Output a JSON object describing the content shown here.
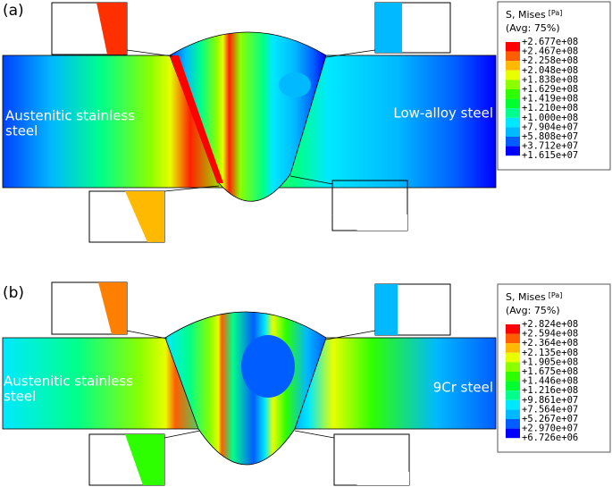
{
  "panels": [
    {
      "label": "(a)",
      "legend": {
        "title": "S, Mises",
        "unit": "[Pa]",
        "average": "(Avg: 75%)",
        "values": [
          "+2.677e+08",
          "+2.467e+08",
          "+2.258e+08",
          "+2.048e+08",
          "+1.838e+08",
          "+1.629e+08",
          "+1.419e+08",
          "+1.210e+08",
          "+1.000e+08",
          "+7.904e+07",
          "+5.808e+07",
          "+3.712e+07",
          "+1.615e+07"
        ]
      },
      "left_material": [
        "Austenitic stainless",
        "steel"
      ],
      "right_material": [
        "Low-alloy steel"
      ]
    },
    {
      "label": "(b)",
      "legend": {
        "title": "S, Mises",
        "unit": "[Pa]",
        "average": "(Avg: 75%)",
        "values": [
          "+2.824e+08",
          "+2.594e+08",
          "+2.364e+08",
          "+2.135e+08",
          "+1.905e+08",
          "+1.675e+08",
          "+1.446e+08",
          "+1.216e+08",
          "+9.861e+07",
          "+7.564e+07",
          "+5.267e+07",
          "+2.970e+07",
          "+6.726e+06"
        ]
      },
      "left_material": [
        "Austenitic stainless",
        "steel"
      ],
      "right_material": [
        "9Cr steel"
      ]
    }
  ]
}
